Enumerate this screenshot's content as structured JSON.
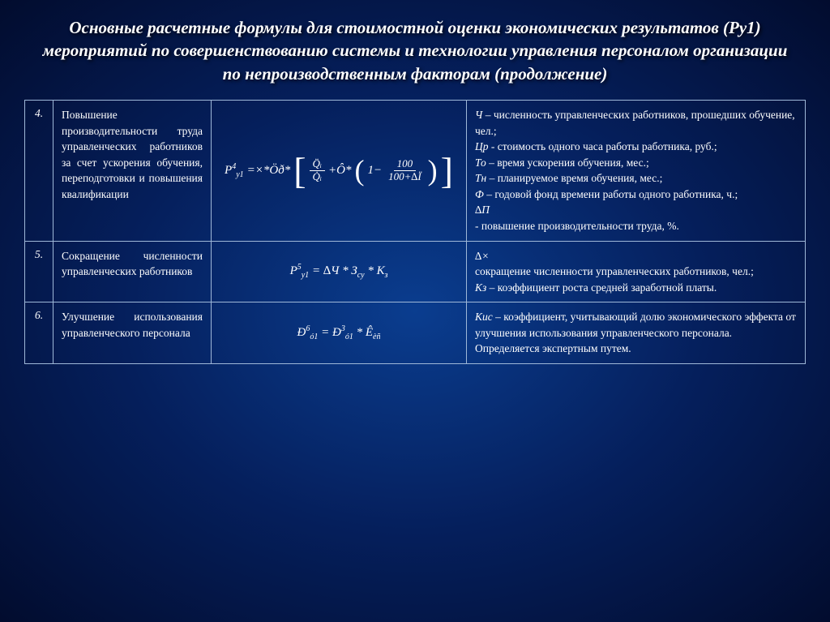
{
  "title": "Основные расчетные формулы для стоимостной оценки экономических результатов (Ру1) мероприятий по совершенствованию системы и технологии управления персоналом организации по непроизводственным факторам (продолжение)",
  "background_gradient": {
    "center": "#0a3d8f",
    "mid": "#051f5c",
    "outer": "#020c2e"
  },
  "text_color": "#ffffff",
  "border_color": "#9fb8d8",
  "title_fontsize": 21,
  "body_fontsize": 13.5,
  "rows": [
    {
      "num": "4.",
      "desc": "Повышение производительности труда управленческих работников за счет ускорения обучения, переподготовки и повышения квалификации",
      "formula": {
        "text": "P⁴у1 = × * Öð * [ Q̈ᵢ/Q̇ᵢ + Ô * (1 − 100/(100+∆Ï)) ]",
        "lhs": "P",
        "lhs_sup": "4",
        "lhs_sub": "у1",
        "rhs_prefix": "=×*Öð*",
        "bracket_frac_num": "Q̈ᵢ",
        "bracket_frac_den": "Q̇ᵢ",
        "plus_term": "+Ô*",
        "inner_frac_num": "100",
        "inner_frac_den": "100+∆Ï"
      },
      "legend_parts": [
        {
          "var": "Ч",
          "text": " – численность управленческих работников, прошедших обучение, чел.;"
        },
        {
          "var": "Цр",
          "text": " - стоимость одного часа работы работника, руб.;"
        },
        {
          "var": "То",
          "text": " – время ускорения обучения, мес.;"
        },
        {
          "var": "Тн",
          "text": " – планируемое время обучения, мес.;"
        },
        {
          "var": "Ф",
          "text": " – годовой фонд времени работы одного работника, ч.;"
        },
        {
          "var": "    ∆П",
          "text": ""
        },
        {
          "var": "",
          "text": "- повышение производительности труда, %."
        }
      ]
    },
    {
      "num": "5.",
      "desc": "Сокращение численности управленческих работников",
      "formula": {
        "text": "P⁵у1 = ∆Ч * Зсу * Кз",
        "lhs": "P",
        "lhs_sup": "5",
        "lhs_sub": "у1",
        "rhs": "= ∆Ч * З",
        "rhs_sub1": "су",
        "rhs_cont": " * К",
        "rhs_sub2": "з"
      },
      "legend_parts": [
        {
          "var": "   ∆×",
          "text": ""
        },
        {
          "var": "",
          "text": "сокращение численности управленческих работников, чел.;"
        },
        {
          "var": "Кз",
          "text": " – коэффициент роста средней заработной платы."
        }
      ]
    },
    {
      "num": "6.",
      "desc": "Улучшение использования управленческого персонала",
      "formula": {
        "text": "Ð⁶ó1 = Ð³ó1 * Êèñ",
        "lhs": "Ð",
        "lhs_sup": "6",
        "lhs_sub": "ó1",
        "rhs": "= Ð",
        "rhs_sup": "3",
        "rhs_sub": "ó1",
        "rhs_cont": " * Ê",
        "rhs_sub2": "èñ"
      },
      "legend_parts": [
        {
          "var": "Кис",
          "text": " – коэффициент, учитывающий долю экономического эффекта от улучшения использования управленческого персонала. Определяется экспертным путем."
        }
      ]
    }
  ]
}
